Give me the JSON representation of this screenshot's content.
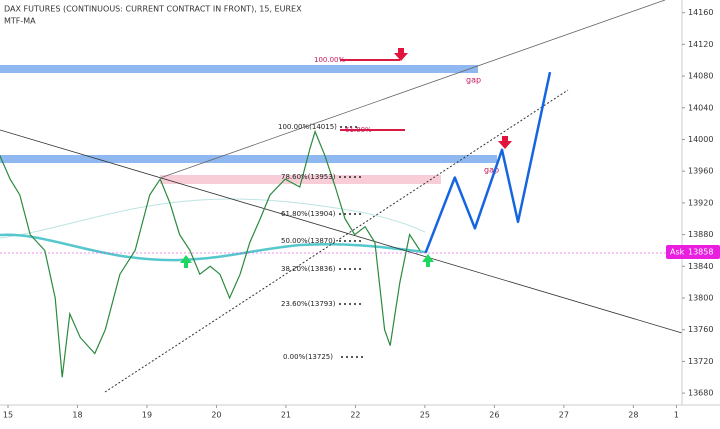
{
  "chart_data": {
    "type": "line",
    "title": "DAX FUTURES (CONTINUOUS: CURRENT CONTRACT IN FRONT), 15, EUREX",
    "subtitle": "MTF-MA",
    "x": [
      -0.12,
      0.03,
      0.17,
      0.32,
      0.53,
      0.68,
      0.78,
      0.89,
      1.04,
      1.25,
      1.4,
      1.61,
      1.83,
      2.04,
      2.19,
      2.33,
      2.47,
      2.62,
      2.76,
      2.91,
      3.05,
      3.19,
      3.34,
      3.48,
      3.63,
      3.77,
      3.99,
      4.2,
      4.35,
      4.42,
      4.56,
      4.71,
      4.85,
      4.99,
      5.14,
      5.28,
      5.42,
      5.5,
      5.57,
      5.64,
      5.78,
      5.93
    ],
    "series": [
      {
        "name": "DAX",
        "color": "#2b8a3e",
        "values": [
          13980,
          13950,
          13930,
          13880,
          13860,
          13800,
          13700,
          13780,
          13750,
          13730,
          13760,
          13830,
          13860,
          13930,
          13950,
          13920,
          13880,
          13860,
          13830,
          13840,
          13830,
          13800,
          13830,
          13870,
          13900,
          13930,
          13950,
          13940,
          13990,
          14010,
          13980,
          13940,
          13900,
          13880,
          13890,
          13870,
          13760,
          13740,
          13780,
          13820,
          13880,
          13860
        ]
      }
    ],
    "projection": {
      "color": "#1565e0",
      "x": [
        6.01,
        6.43,
        6.72,
        7.11,
        7.34,
        7.8
      ],
      "values": [
        13857,
        13952,
        13888,
        13987,
        13896,
        14085
      ]
    },
    "xlim": [
      -0.115,
      9.7
    ],
    "ylim": [
      13665,
      14176
    ],
    "xticks": [
      {
        "value": 0,
        "label": "15"
      },
      {
        "value": 1,
        "label": "18"
      },
      {
        "value": 2,
        "label": "19"
      },
      {
        "value": 3,
        "label": "20"
      },
      {
        "value": 4,
        "label": "21"
      },
      {
        "value": 5,
        "label": "22"
      },
      {
        "value": 6,
        "label": "25"
      },
      {
        "value": 7,
        "label": "26"
      },
      {
        "value": 8,
        "label": "27"
      },
      {
        "value": 9,
        "label": "28"
      },
      {
        "value": 9.62,
        "label": "1"
      }
    ],
    "yticks": [
      14160,
      14120,
      14080,
      14040,
      14000,
      13960,
      13920,
      13880,
      13840,
      13800,
      13760,
      13720,
      13680
    ],
    "fib_labels": [
      "100.00%",
      "100.00%(14015)",
      "61.80%",
      "78.60%(13953)",
      "61.80%(13904)",
      "50.00%(13870)",
      "38.20%(13836)",
      "23.60%(13793)",
      "0.00%(13725)"
    ],
    "gap_labels": [
      "gap",
      "gap"
    ],
    "ask": {
      "label": "Ask",
      "price": 13858,
      "color": "#e91ee0"
    }
  }
}
